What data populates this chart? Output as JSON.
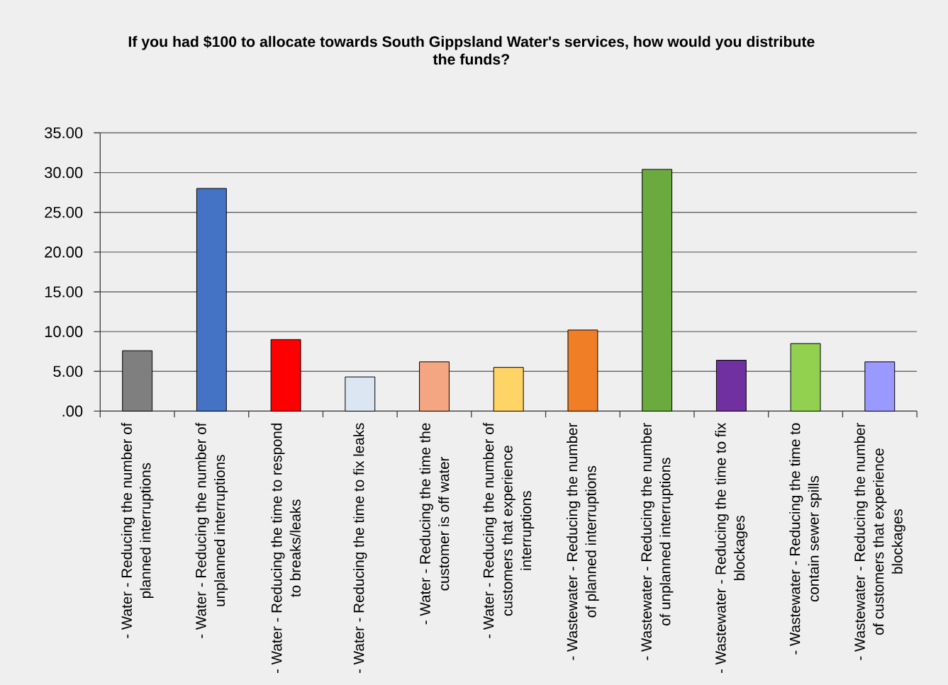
{
  "chart_data": {
    "type": "bar",
    "title": "If you had $100 to allocate towards South Gippsland Water's services, how would you distribute the funds?",
    "categories": [
      "- Water - Reducing the number of planned interruptions",
      "- Water - Reducing the number of unplanned interruptions",
      "- Water - Reducing the time to respond to breaks/leaks",
      "- Water - Reducing the time to fix leaks",
      "- Water - Reducing the time the customer is off water",
      "- Water - Reducing the number of customers that experience interruptions",
      "- Wastewater - Reducing the number of planned interruptions",
      "- Wastewater - Reducing the number of unplanned interruptions",
      "- Wastewater - Reducing the time to fix blockages",
      "- Wastewater - Reducing the time to contain sewer spills",
      "- Wastewater - Reducing the number of customers that experience blockages"
    ],
    "values": [
      7.6,
      28.0,
      9.0,
      4.3,
      6.2,
      5.5,
      10.2,
      30.4,
      6.4,
      8.5,
      6.2
    ],
    "colors": [
      "#7f7f7f",
      "#4472c4",
      "#ff0000",
      "#dce6f2",
      "#f4a582",
      "#ffd466",
      "#f07e26",
      "#6aaa3e",
      "#7030a0",
      "#92d050",
      "#9999ff"
    ],
    "ylim": [
      0,
      35
    ],
    "yticks": [
      {
        "value": 0,
        "label": ".00"
      },
      {
        "value": 5,
        "label": "5.00"
      },
      {
        "value": 10,
        "label": "10.00"
      },
      {
        "value": 15,
        "label": "15.00"
      },
      {
        "value": 20,
        "label": "20.00"
      },
      {
        "value": 25,
        "label": "25.00"
      },
      {
        "value": 30,
        "label": "30.00"
      },
      {
        "value": 35,
        "label": "35.00"
      }
    ],
    "grid": "y"
  }
}
